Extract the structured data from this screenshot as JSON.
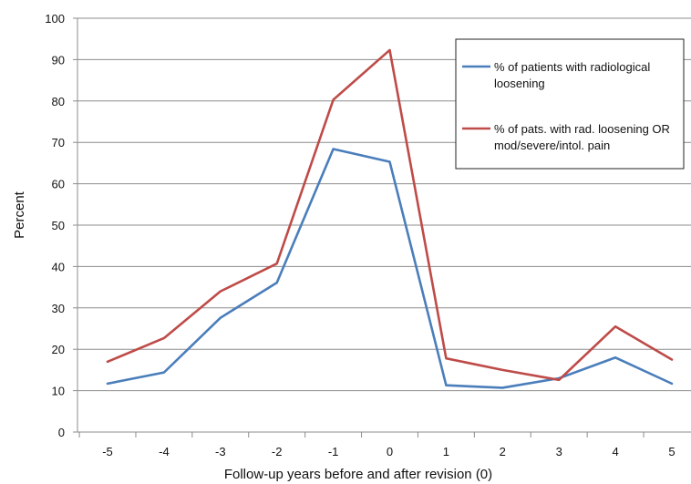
{
  "chart_data": {
    "type": "line",
    "title": "",
    "xlabel": "Follow-up years before and after revision (0)",
    "ylabel": "Percent",
    "x": [
      -5,
      -4,
      -3,
      -2,
      -1,
      0,
      1,
      2,
      3,
      4,
      5
    ],
    "x_tick_labels": [
      "-5",
      "-4",
      "-3",
      "-2",
      "-1",
      "0",
      "1",
      "2",
      "3",
      "4",
      "5"
    ],
    "ylim": [
      0,
      100
    ],
    "y_ticks": [
      0,
      10,
      20,
      30,
      40,
      50,
      60,
      70,
      80,
      90,
      100
    ],
    "y_tick_labels": [
      "0",
      "10",
      "20",
      "30",
      "40",
      "50",
      "60",
      "70",
      "80",
      "90",
      "100"
    ],
    "grid": true,
    "legend_position": "top-right",
    "series": [
      {
        "name": "% of patients with radiological loosening",
        "legend_lines": [
          "% of patients with radiological",
          "loosening"
        ],
        "color": "#4A7EBB",
        "values": [
          11.7,
          14.4,
          27.6,
          36.1,
          68.4,
          65.3,
          11.3,
          10.7,
          13.0,
          18.0,
          11.7
        ]
      },
      {
        "name": "% of pats. with rad. loosening OR mod/severe/intol. pain",
        "legend_lines": [
          "% of pats. with rad. loosening OR",
          "mod/severe/intol. pain"
        ],
        "color": "#BE4B48",
        "values": [
          17.0,
          22.7,
          34.0,
          40.7,
          80.3,
          92.3,
          17.8,
          15.0,
          12.6,
          25.5,
          17.5
        ]
      }
    ]
  }
}
